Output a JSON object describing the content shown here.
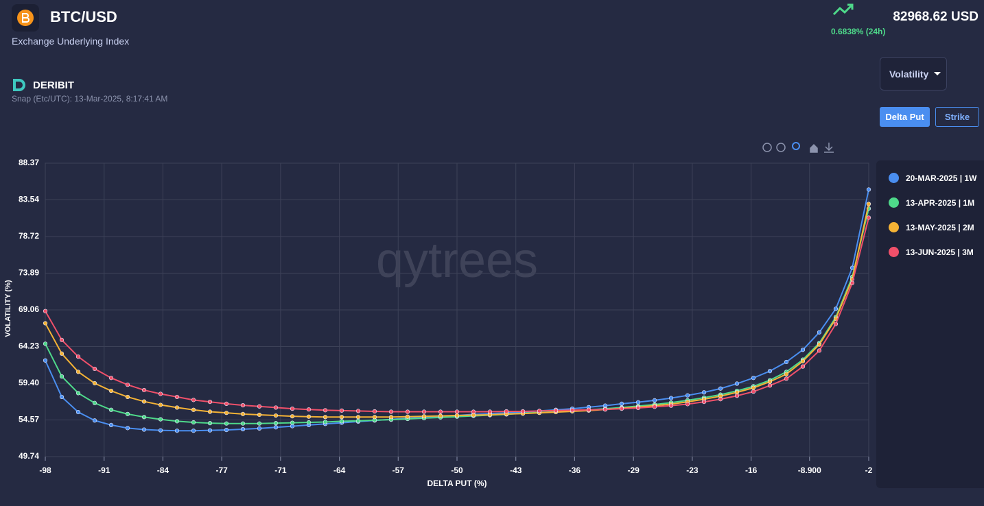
{
  "header": {
    "symbol": "BTC/USD",
    "subtitle": "Exchange Underlying Index",
    "price": "82968.62 USD",
    "change": "0.6838% (24h)",
    "exchange": "DERIBIT",
    "snap": "Snap (Etc/UTC): 13-Mar-2025, 8:17:41 AM"
  },
  "controls": {
    "dropdown": "Volatility",
    "buttons": [
      "Delta Put",
      "Strike"
    ]
  },
  "chart_data": {
    "type": "line",
    "watermark": "qytrees",
    "x_label": "DELTA PUT (%)",
    "y_label": "VOLATILITY (%)",
    "grid": true,
    "x": [
      -98,
      -96.08,
      -94.16,
      -92.24,
      -90.32,
      -88.4,
      -86.48,
      -84.56,
      -82.64,
      -80.72,
      -78.8,
      -76.88,
      -74.96,
      -73.04,
      -71.12,
      -69.2,
      -67.28,
      -65.36,
      -63.44,
      -61.52,
      -59.6,
      -57.68,
      -55.76,
      -53.84,
      -51.92,
      -50,
      -48.08,
      -46.16,
      -44.24,
      -42.32,
      -40.4,
      -38.48,
      -36.56,
      -34.64,
      -32.72,
      -30.8,
      -28.88,
      -26.96,
      -25.04,
      -23.12,
      -21.2,
      -19.28,
      -17.36,
      -15.44,
      -13.52,
      -11.6,
      -9.68,
      -7.76,
      -5.84,
      -3.92,
      -2
    ],
    "xlim": [
      -98,
      -2
    ],
    "xticks": [
      -98,
      {
        "value": -91.14,
        "label": "-91"
      },
      {
        "value": -84.29,
        "label": "-84"
      },
      {
        "value": -77.43,
        "label": "-77"
      },
      {
        "value": -70.57,
        "label": "-71"
      },
      {
        "value": -63.71,
        "label": "-64"
      },
      {
        "value": -56.86,
        "label": "-57"
      },
      -50,
      {
        "value": -43.14,
        "label": "-43"
      },
      {
        "value": -36.29,
        "label": "-36"
      },
      {
        "value": -29.43,
        "label": "-29"
      },
      {
        "value": -22.57,
        "label": "-23"
      },
      {
        "value": -15.71,
        "label": "-16"
      },
      {
        "value": -8.9,
        "label": "-8.900"
      },
      -2
    ],
    "ylim": [
      49.74,
      88.37
    ],
    "yticks": [
      49.74,
      54.57,
      {
        "value": 59.4,
        "label": "59.40"
      },
      64.23,
      69.06,
      73.89,
      78.72,
      83.54,
      88.37
    ],
    "series": [
      {
        "name": "20-MAR-2025 | 1W",
        "color": "#4a8ef0",
        "values": [
          62.4,
          57.6,
          55.6,
          54.5,
          53.9,
          53.5,
          53.3,
          53.2,
          53.15,
          53.15,
          53.2,
          53.25,
          53.35,
          53.45,
          53.6,
          53.75,
          53.9,
          54.05,
          54.2,
          54.35,
          54.5,
          54.65,
          54.8,
          54.9,
          55.05,
          55.15,
          55.3,
          55.4,
          55.5,
          55.6,
          55.75,
          55.9,
          56.05,
          56.25,
          56.45,
          56.7,
          56.9,
          57.15,
          57.45,
          57.8,
          58.2,
          58.7,
          59.35,
          60.1,
          61.0,
          62.2,
          63.8,
          66.1,
          69.2,
          74.6,
          84.9
        ]
      },
      {
        "name": "13-APR-2025 | 1M",
        "color": "#4ed98a",
        "values": [
          64.6,
          60.3,
          58.1,
          56.8,
          55.9,
          55.35,
          54.95,
          54.65,
          54.4,
          54.25,
          54.15,
          54.1,
          54.1,
          54.1,
          54.15,
          54.2,
          54.25,
          54.3,
          54.4,
          54.45,
          54.55,
          54.6,
          54.7,
          54.8,
          54.9,
          55.0,
          55.1,
          55.2,
          55.3,
          55.45,
          55.55,
          55.65,
          55.75,
          55.9,
          56.05,
          56.2,
          56.4,
          56.6,
          56.85,
          57.15,
          57.5,
          57.9,
          58.4,
          59.0,
          59.8,
          60.9,
          62.5,
          64.7,
          68.1,
          73.4,
          82.4
        ]
      },
      {
        "name": "13-MAY-2025 | 2M",
        "color": "#f5b335",
        "values": [
          67.3,
          63.3,
          60.9,
          59.4,
          58.4,
          57.6,
          57.0,
          56.55,
          56.2,
          55.9,
          55.65,
          55.5,
          55.35,
          55.25,
          55.15,
          55.05,
          55.0,
          54.95,
          54.95,
          54.95,
          54.95,
          54.95,
          55.0,
          55.05,
          55.1,
          55.15,
          55.2,
          55.25,
          55.35,
          55.4,
          55.5,
          55.6,
          55.7,
          55.8,
          55.95,
          56.1,
          56.25,
          56.45,
          56.65,
          56.95,
          57.3,
          57.7,
          58.2,
          58.8,
          59.6,
          60.6,
          62.3,
          64.5,
          67.9,
          73.1,
          83.0
        ]
      },
      {
        "name": "13-JUN-2025 | 3M",
        "color": "#f0506a",
        "values": [
          68.9,
          65.1,
          62.9,
          61.3,
          60.1,
          59.2,
          58.5,
          58.0,
          57.6,
          57.2,
          56.95,
          56.7,
          56.5,
          56.35,
          56.2,
          56.05,
          55.95,
          55.85,
          55.8,
          55.75,
          55.7,
          55.65,
          55.65,
          55.65,
          55.65,
          55.65,
          55.65,
          55.65,
          55.7,
          55.7,
          55.75,
          55.8,
          55.85,
          55.9,
          55.95,
          56.05,
          56.15,
          56.3,
          56.45,
          56.65,
          56.95,
          57.3,
          57.75,
          58.3,
          59.1,
          60.0,
          61.6,
          63.7,
          67.2,
          72.6,
          81.2
        ]
      }
    ]
  }
}
